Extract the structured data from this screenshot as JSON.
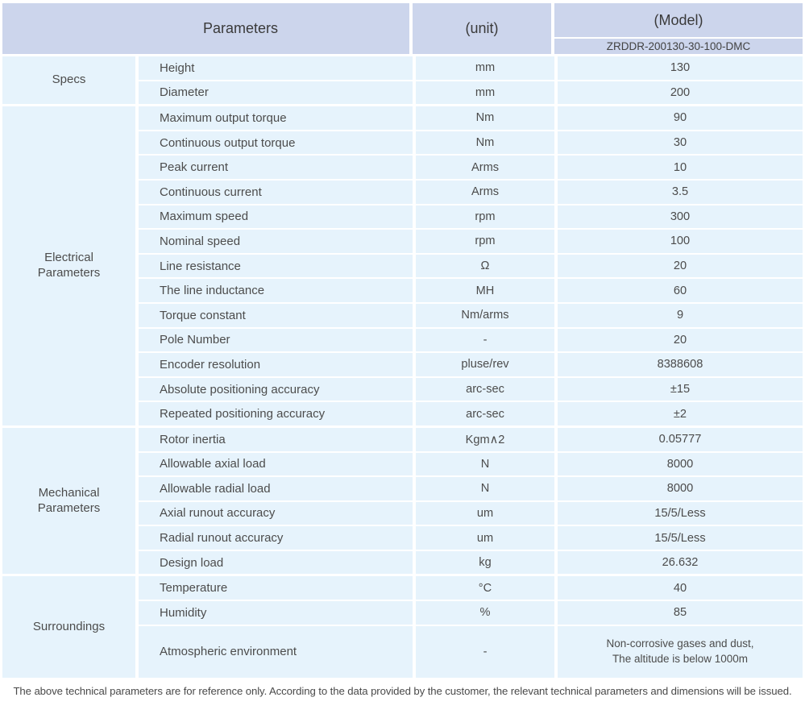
{
  "colors": {
    "header_bg": "#ccd5ec",
    "row_bg": "#e6f3fc",
    "separator": "#ffffff",
    "text": "#4c4c4c"
  },
  "header": {
    "parameters_label": "Parameters",
    "unit_label": "(unit)",
    "model_label": "(Model)",
    "model_value": "ZRDDR-200130-30-100-DMC"
  },
  "sections": [
    {
      "label": "Specs",
      "rows": [
        {
          "name": "Height",
          "unit": "mm",
          "value": "130"
        },
        {
          "name": "Diameter",
          "unit": "mm",
          "value": "200"
        }
      ]
    },
    {
      "label": "Electrical Parameters",
      "rows": [
        {
          "name": "Maximum output torque",
          "unit": "Nm",
          "value": "90"
        },
        {
          "name": "Continuous output torque",
          "unit": "Nm",
          "value": "30"
        },
        {
          "name": "Peak current",
          "unit": "Arms",
          "value": "10"
        },
        {
          "name": "Continuous current",
          "unit": "Arms",
          "value": "3.5"
        },
        {
          "name": "Maximum speed",
          "unit": "rpm",
          "value": "300"
        },
        {
          "name": "Nominal speed",
          "unit": "rpm",
          "value": "100"
        },
        {
          "name": "Line resistance",
          "unit": "Ω",
          "value": "20"
        },
        {
          "name": "The line inductance",
          "unit": "MH",
          "value": "60"
        },
        {
          "name": "Torque constant",
          "unit": "Nm/arms",
          "value": "9"
        },
        {
          "name": "Pole Number",
          "unit": "-",
          "value": "20"
        },
        {
          "name": "Encoder resolution",
          "unit": "pluse/rev",
          "value": "8388608"
        },
        {
          "name": "Absolute positioning accuracy",
          "unit": "arc-sec",
          "value": "±15"
        },
        {
          "name": "Repeated positioning accuracy",
          "unit": "arc-sec",
          "value": "±2"
        }
      ]
    },
    {
      "label": "Mechanical Parameters",
      "rows": [
        {
          "name": "Rotor inertia",
          "unit": "Kgm∧2",
          "value": "0.05777"
        },
        {
          "name": "Allowable axial load",
          "unit": "N",
          "value": "8000"
        },
        {
          "name": "Allowable radial load",
          "unit": "N",
          "value": "8000"
        },
        {
          "name": "Axial runout accuracy",
          "unit": "um",
          "value": "15/5/Less"
        },
        {
          "name": "Radial runout accuracy",
          "unit": "um",
          "value": "15/5/Less"
        },
        {
          "name": "Design load",
          "unit": "kg",
          "value": "26.632"
        }
      ]
    },
    {
      "label": "Surroundings",
      "rows": [
        {
          "name": "Temperature",
          "unit": "°C",
          "value": "40"
        },
        {
          "name": "Humidity",
          "unit": "%",
          "value": "85"
        },
        {
          "name": "Atmospheric environment",
          "unit": "-",
          "value": "Non-corrosive gases and dust,\nThe altitude is below 1000m"
        }
      ]
    }
  ],
  "footer_note": "The above technical parameters are for reference only. According to the data provided by the customer, the relevant technical parameters and dimensions will be issued."
}
